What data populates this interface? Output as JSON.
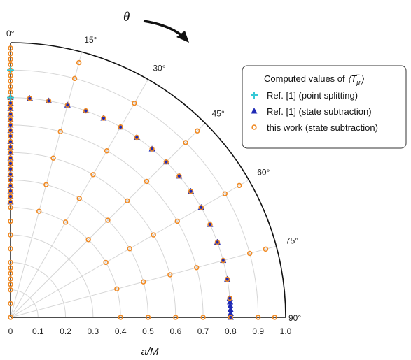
{
  "chart_data": {
    "type": "scatter",
    "coordinate_system": "polar",
    "xlabel": "a/M",
    "radial_ticks": [
      "0",
      "0.1",
      "0.2",
      "0.3",
      "0.4",
      "0.5",
      "0.6",
      "0.7",
      "0.8",
      "0.9",
      "1.0"
    ],
    "radial_range": [
      0,
      1.0
    ],
    "angle_ticks": [
      "0°",
      "15°",
      "30°",
      "45°",
      "60°",
      "75°",
      "90°"
    ],
    "angle_range_deg": [
      0,
      90
    ],
    "angle_label": "θ",
    "angle_direction": "clockwise from top",
    "grid": true,
    "legend": {
      "title_prefix": "Computed values of ",
      "title_math": "⟨T",
      "title_sub": "μν",
      "title_sup": "−",
      "title_close": "⟩",
      "placement": "top-right",
      "entries": [
        {
          "label": "Ref. [1] (point splitting)",
          "marker": "plus",
          "color": "#35c8d6"
        },
        {
          "label": "Ref. [1] (state subtraction)",
          "marker": "triangle",
          "color": "#1f2ab5"
        },
        {
          "label": "this work (state subtraction)",
          "marker": "open-circle",
          "color": "#f08a24"
        }
      ]
    },
    "series": [
      {
        "name": "Ref. [1] (point splitting)",
        "marker": "plus",
        "color": "#35c8d6",
        "points": [
          {
            "r": 0.9,
            "theta": 0
          },
          {
            "r": 0.8,
            "theta": 0
          }
        ]
      },
      {
        "name": "Ref. [1] (state subtraction)",
        "marker": "triangle",
        "color": "#1f2ab5",
        "points": [
          {
            "r": 0.8,
            "theta": 0
          },
          {
            "r": 0.78,
            "theta": 0
          },
          {
            "r": 0.76,
            "theta": 0
          },
          {
            "r": 0.74,
            "theta": 0
          },
          {
            "r": 0.72,
            "theta": 0
          },
          {
            "r": 0.7,
            "theta": 0
          },
          {
            "r": 0.68,
            "theta": 0
          },
          {
            "r": 0.66,
            "theta": 0
          },
          {
            "r": 0.64,
            "theta": 0
          },
          {
            "r": 0.62,
            "theta": 0
          },
          {
            "r": 0.6,
            "theta": 0
          },
          {
            "r": 0.58,
            "theta": 0
          },
          {
            "r": 0.56,
            "theta": 0
          },
          {
            "r": 0.54,
            "theta": 0
          },
          {
            "r": 0.52,
            "theta": 0
          },
          {
            "r": 0.5,
            "theta": 0
          },
          {
            "r": 0.48,
            "theta": 0
          },
          {
            "r": 0.46,
            "theta": 0
          },
          {
            "r": 0.44,
            "theta": 0
          },
          {
            "r": 0.42,
            "theta": 0
          },
          {
            "r": 0.8,
            "theta": 5
          },
          {
            "r": 0.8,
            "theta": 10
          },
          {
            "r": 0.8,
            "theta": 15
          },
          {
            "r": 0.8,
            "theta": 20
          },
          {
            "r": 0.8,
            "theta": 25
          },
          {
            "r": 0.8,
            "theta": 30
          },
          {
            "r": 0.8,
            "theta": 35
          },
          {
            "r": 0.8,
            "theta": 40
          },
          {
            "r": 0.8,
            "theta": 45
          },
          {
            "r": 0.8,
            "theta": 50
          },
          {
            "r": 0.8,
            "theta": 55
          },
          {
            "r": 0.8,
            "theta": 60
          },
          {
            "r": 0.8,
            "theta": 65
          },
          {
            "r": 0.8,
            "theta": 70
          },
          {
            "r": 0.8,
            "theta": 75
          },
          {
            "r": 0.8,
            "theta": 80
          },
          {
            "r": 0.8,
            "theta": 85
          },
          {
            "r": 0.8,
            "theta": 86
          },
          {
            "r": 0.8,
            "theta": 87
          },
          {
            "r": 0.8,
            "theta": 88
          },
          {
            "r": 0.8,
            "theta": 89
          },
          {
            "r": 0.8,
            "theta": 90
          }
        ]
      },
      {
        "name": "this work (state subtraction)",
        "marker": "open-circle",
        "color": "#f08a24",
        "points": [
          {
            "r": 0.4,
            "theta": 0
          },
          {
            "r": 0.4,
            "theta": 15
          },
          {
            "r": 0.4,
            "theta": 30
          },
          {
            "r": 0.4,
            "theta": 45
          },
          {
            "r": 0.4,
            "theta": 60
          },
          {
            "r": 0.4,
            "theta": 75
          },
          {
            "r": 0.4,
            "theta": 90
          },
          {
            "r": 0.5,
            "theta": 0
          },
          {
            "r": 0.5,
            "theta": 15
          },
          {
            "r": 0.5,
            "theta": 30
          },
          {
            "r": 0.5,
            "theta": 45
          },
          {
            "r": 0.5,
            "theta": 60
          },
          {
            "r": 0.5,
            "theta": 75
          },
          {
            "r": 0.5,
            "theta": 90
          },
          {
            "r": 0.6,
            "theta": 0
          },
          {
            "r": 0.6,
            "theta": 15
          },
          {
            "r": 0.6,
            "theta": 30
          },
          {
            "r": 0.6,
            "theta": 45
          },
          {
            "r": 0.6,
            "theta": 60
          },
          {
            "r": 0.6,
            "theta": 75
          },
          {
            "r": 0.6,
            "theta": 90
          },
          {
            "r": 0.7,
            "theta": 0
          },
          {
            "r": 0.7,
            "theta": 15
          },
          {
            "r": 0.7,
            "theta": 30
          },
          {
            "r": 0.7,
            "theta": 45
          },
          {
            "r": 0.7,
            "theta": 60
          },
          {
            "r": 0.7,
            "theta": 75
          },
          {
            "r": 0.7,
            "theta": 90
          },
          {
            "r": 0.8,
            "theta": 0
          },
          {
            "r": 0.8,
            "theta": 5
          },
          {
            "r": 0.8,
            "theta": 10
          },
          {
            "r": 0.8,
            "theta": 15
          },
          {
            "r": 0.8,
            "theta": 20
          },
          {
            "r": 0.8,
            "theta": 25
          },
          {
            "r": 0.8,
            "theta": 30
          },
          {
            "r": 0.8,
            "theta": 35
          },
          {
            "r": 0.8,
            "theta": 40
          },
          {
            "r": 0.8,
            "theta": 45
          },
          {
            "r": 0.8,
            "theta": 50
          },
          {
            "r": 0.8,
            "theta": 55
          },
          {
            "r": 0.8,
            "theta": 60
          },
          {
            "r": 0.8,
            "theta": 65
          },
          {
            "r": 0.8,
            "theta": 70
          },
          {
            "r": 0.8,
            "theta": 75
          },
          {
            "r": 0.8,
            "theta": 80
          },
          {
            "r": 0.8,
            "theta": 85
          },
          {
            "r": 0.8,
            "theta": 90
          },
          {
            "r": 0.9,
            "theta": 0
          },
          {
            "r": 0.9,
            "theta": 15
          },
          {
            "r": 0.9,
            "theta": 30
          },
          {
            "r": 0.9,
            "theta": 45
          },
          {
            "r": 0.9,
            "theta": 60
          },
          {
            "r": 0.9,
            "theta": 75
          },
          {
            "r": 0.9,
            "theta": 90
          },
          {
            "r": 0.96,
            "theta": 15
          },
          {
            "r": 0.96,
            "theta": 45
          },
          {
            "r": 0.96,
            "theta": 60
          },
          {
            "r": 0.96,
            "theta": 75
          },
          {
            "r": 0.96,
            "theta": 90
          },
          {
            "r": 0.0,
            "theta": 0
          },
          {
            "r": 0.05,
            "theta": 0
          },
          {
            "r": 0.1,
            "theta": 0
          },
          {
            "r": 0.12,
            "theta": 0
          },
          {
            "r": 0.14,
            "theta": 0
          },
          {
            "r": 0.16,
            "theta": 0
          },
          {
            "r": 0.18,
            "theta": 0
          },
          {
            "r": 0.2,
            "theta": 0
          },
          {
            "r": 0.25,
            "theta": 0
          },
          {
            "r": 0.3,
            "theta": 0
          },
          {
            "r": 0.35,
            "theta": 0
          },
          {
            "r": 0.42,
            "theta": 0
          },
          {
            "r": 0.44,
            "theta": 0
          },
          {
            "r": 0.46,
            "theta": 0
          },
          {
            "r": 0.48,
            "theta": 0
          },
          {
            "r": 0.52,
            "theta": 0
          },
          {
            "r": 0.54,
            "theta": 0
          },
          {
            "r": 0.56,
            "theta": 0
          },
          {
            "r": 0.58,
            "theta": 0
          },
          {
            "r": 0.62,
            "theta": 0
          },
          {
            "r": 0.64,
            "theta": 0
          },
          {
            "r": 0.66,
            "theta": 0
          },
          {
            "r": 0.68,
            "theta": 0
          },
          {
            "r": 0.72,
            "theta": 0
          },
          {
            "r": 0.74,
            "theta": 0
          },
          {
            "r": 0.76,
            "theta": 0
          },
          {
            "r": 0.78,
            "theta": 0
          },
          {
            "r": 0.82,
            "theta": 0
          },
          {
            "r": 0.84,
            "theta": 0
          },
          {
            "r": 0.86,
            "theta": 0
          },
          {
            "r": 0.88,
            "theta": 0
          },
          {
            "r": 0.92,
            "theta": 0
          },
          {
            "r": 0.94,
            "theta": 0
          },
          {
            "r": 0.96,
            "theta": 0
          },
          {
            "r": 0.98,
            "theta": 0
          }
        ]
      }
    ]
  }
}
